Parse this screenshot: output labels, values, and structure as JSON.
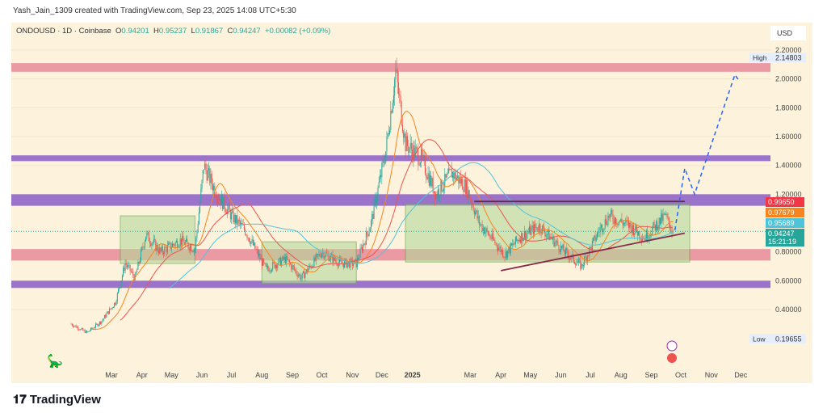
{
  "header": {
    "credit": "Yash_Jain_1309 created with TradingView.com, Sep 23, 2025 14:08 UTC+5:30"
  },
  "legend": {
    "symbol": "ONDOUSD · 1D · Coinbase",
    "o_label": "O",
    "o": "0.94201",
    "h_label": "H",
    "h": "0.95237",
    "l_label": "L",
    "l": "0.91867",
    "c_label": "C",
    "c": "0.94247",
    "change": "+0.00082 (+0.09%)"
  },
  "footer": {
    "brand": "TradingView"
  },
  "colors": {
    "up": "#26a69a",
    "down": "#ef5350",
    "pink_zone": "#e8899a",
    "purple_zone": "#8b5cc8",
    "box": "#b5d99a",
    "projection": "#2962ff"
  },
  "chart_data": {
    "type": "candlestick",
    "currency": "USD",
    "ylim": [
      0.1,
      2.3
    ],
    "y_ticks": [
      "2.20000",
      "2.00000",
      "1.80000",
      "1.60000",
      "1.40000",
      "1.20000",
      "0.80000",
      "0.60000",
      "0.40000"
    ],
    "y_tick_values": [
      2.2,
      2.0,
      1.8,
      1.6,
      1.4,
      1.2,
      0.8,
      0.6,
      0.4
    ],
    "x_ticks": [
      [
        "Mar",
        "2024-03-01"
      ],
      [
        "Apr",
        "2024-04-01"
      ],
      [
        "May",
        "2024-05-01"
      ],
      [
        "Jun",
        "2024-06-01"
      ],
      [
        "Jul",
        "2024-07-01"
      ],
      [
        "Aug",
        "2024-08-01"
      ],
      [
        "Sep",
        "2024-09-01"
      ],
      [
        "Oct",
        "2024-10-01"
      ],
      [
        "Nov",
        "2024-11-01"
      ],
      [
        "Dec",
        "2024-12-01"
      ],
      [
        "2025",
        "2025-01-01"
      ],
      [
        "Mar",
        "2025-03-01"
      ],
      [
        "Apr",
        "2025-04-01"
      ],
      [
        "May",
        "2025-05-01"
      ],
      [
        "Jun",
        "2025-06-01"
      ],
      [
        "Jul",
        "2025-07-01"
      ],
      [
        "Aug",
        "2025-08-01"
      ],
      [
        "Sep",
        "2025-09-01"
      ],
      [
        "Oct",
        "2025-10-01"
      ],
      [
        "Nov",
        "2025-11-01"
      ],
      [
        "Dec",
        "2025-12-01"
      ]
    ],
    "high": {
      "label": "High",
      "value": "2.14803"
    },
    "low": {
      "label": "Low",
      "value": "0.19655"
    },
    "price_tags": [
      {
        "value": "0.99650",
        "color": "#f23645"
      },
      {
        "value": "0.97679",
        "color": "#f7841e"
      },
      {
        "value": "0.95689",
        "color": "#4fc3d9"
      },
      {
        "value": "0.94247",
        "color": "#26a69a",
        "sub": "15:21:19"
      }
    ],
    "price_path": [
      [
        "2024-01-20",
        0.3
      ],
      [
        "2024-02-05",
        0.24
      ],
      [
        "2024-02-20",
        0.32
      ],
      [
        "2024-03-05",
        0.45
      ],
      [
        "2024-03-15",
        0.72
      ],
      [
        "2024-03-25",
        0.62
      ],
      [
        "2024-04-05",
        0.92
      ],
      [
        "2024-04-20",
        0.8
      ],
      [
        "2024-05-10",
        0.88
      ],
      [
        "2024-05-25",
        0.82
      ],
      [
        "2024-06-03",
        1.4
      ],
      [
        "2024-06-15",
        1.22
      ],
      [
        "2024-07-01",
        1.05
      ],
      [
        "2024-07-15",
        0.95
      ],
      [
        "2024-08-05",
        0.68
      ],
      [
        "2024-08-25",
        0.75
      ],
      [
        "2024-09-10",
        0.62
      ],
      [
        "2024-10-01",
        0.8
      ],
      [
        "2024-10-20",
        0.72
      ],
      [
        "2024-11-05",
        0.72
      ],
      [
        "2024-11-20",
        1.0
      ],
      [
        "2024-12-05",
        1.5
      ],
      [
        "2024-12-15",
        2.05
      ],
      [
        "2024-12-25",
        1.55
      ],
      [
        "2025-01-10",
        1.45
      ],
      [
        "2025-01-25",
        1.2
      ],
      [
        "2025-02-10",
        1.35
      ],
      [
        "2025-02-25",
        1.25
      ],
      [
        "2025-03-10",
        1.0
      ],
      [
        "2025-04-05",
        0.78
      ],
      [
        "2025-04-20",
        0.9
      ],
      [
        "2025-05-10",
        0.98
      ],
      [
        "2025-06-05",
        0.8
      ],
      [
        "2025-06-22",
        0.7
      ],
      [
        "2025-07-10",
        0.95
      ],
      [
        "2025-07-20",
        1.05
      ],
      [
        "2025-08-10",
        0.98
      ],
      [
        "2025-08-25",
        0.9
      ],
      [
        "2025-09-15",
        1.05
      ],
      [
        "2025-09-23",
        0.94
      ]
    ],
    "zones": [
      {
        "color": "pink",
        "range": [
          2.05,
          2.11
        ]
      },
      {
        "color": "purple",
        "range": [
          1.43,
          1.47
        ]
      },
      {
        "color": "purple",
        "range": [
          1.12,
          1.2
        ]
      },
      {
        "color": "pink",
        "range": [
          0.74,
          0.82
        ]
      },
      {
        "color": "purple",
        "range": [
          0.55,
          0.6
        ]
      }
    ],
    "boxes": [
      {
        "from": "2024-03-10",
        "to": "2024-05-25",
        "range": [
          0.72,
          1.05
        ]
      },
      {
        "from": "2024-08-01",
        "to": "2024-11-05",
        "range": [
          0.58,
          0.87
        ]
      },
      {
        "from": "2024-12-25",
        "to": "2025-10-10",
        "range": [
          0.73,
          1.13
        ]
      }
    ],
    "lines": [
      {
        "from": [
          "2025-03-05",
          1.15
        ],
        "to": [
          "2025-10-05",
          1.15
        ],
        "color": "#5a2e3a"
      },
      {
        "from": [
          "2025-04-01",
          0.67
        ],
        "to": [
          "2025-10-05",
          0.93
        ],
        "color": "#8a2a4a"
      }
    ],
    "projection": [
      [
        "2025-09-25",
        0.95
      ],
      [
        "2025-10-05",
        1.38
      ],
      [
        "2025-10-15",
        1.2
      ],
      [
        "2025-11-25",
        2.03
      ],
      [
        "2025-11-30",
        1.98
      ]
    ]
  }
}
